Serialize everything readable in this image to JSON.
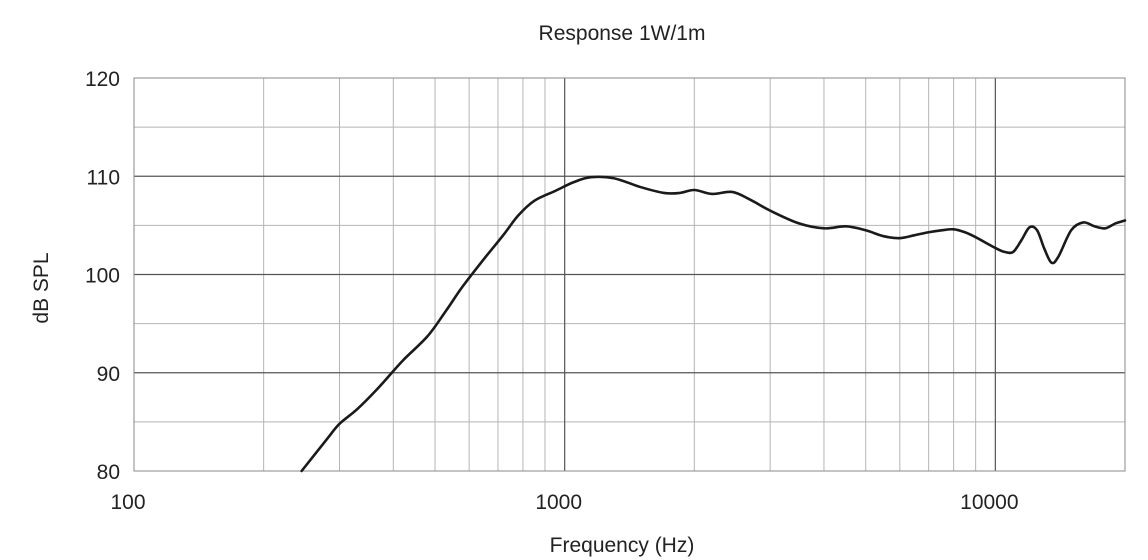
{
  "chart_data": {
    "type": "line",
    "title": "Response 1W/1m",
    "xlabel": "Frequency (Hz)",
    "ylabel": "dB SPL",
    "x_scale": "log",
    "xlim": [
      100,
      20000
    ],
    "ylim": [
      80,
      120
    ],
    "x_ticks": [
      100,
      1000,
      10000
    ],
    "x_tick_labels": [
      "100",
      "1000",
      "10000"
    ],
    "y_ticks": [
      80,
      90,
      100,
      110,
      120
    ],
    "y_tick_labels": [
      "80",
      "90",
      "100",
      "110",
      "120"
    ],
    "grid": true,
    "series": [
      {
        "x": [
          245,
          280,
          300,
          330,
          370,
          420,
          480,
          530,
          580,
          650,
          720,
          780,
          850,
          950,
          1050,
          1150,
          1300,
          1500,
          1700,
          1850,
          2000,
          2200,
          2450,
          2700,
          3000,
          3500,
          4000,
          4500,
          5000,
          5500,
          6000,
          6500,
          7000,
          7500,
          8000,
          8500,
          9000,
          10000,
          10500,
          11000,
          11500,
          12000,
          12500,
          13000,
          13500,
          14000,
          15000,
          16000,
          17000,
          18000,
          19000,
          20000
        ],
        "y": [
          80,
          83.2,
          84.8,
          86.3,
          88.5,
          91.2,
          93.7,
          96.3,
          98.8,
          101.6,
          104,
          106,
          107.5,
          108.5,
          109.4,
          109.9,
          109.8,
          108.9,
          108.3,
          108.3,
          108.6,
          108.2,
          108.4,
          107.6,
          106.5,
          105.2,
          104.7,
          104.9,
          104.5,
          103.9,
          103.7,
          104.0,
          104.3,
          104.5,
          104.6,
          104.3,
          103.8,
          102.7,
          102.3,
          102.3,
          103.5,
          104.8,
          104.5,
          102.6,
          101.2,
          101.8,
          104.5,
          105.3,
          104.9,
          104.7,
          105.2,
          105.5
        ]
      }
    ]
  }
}
